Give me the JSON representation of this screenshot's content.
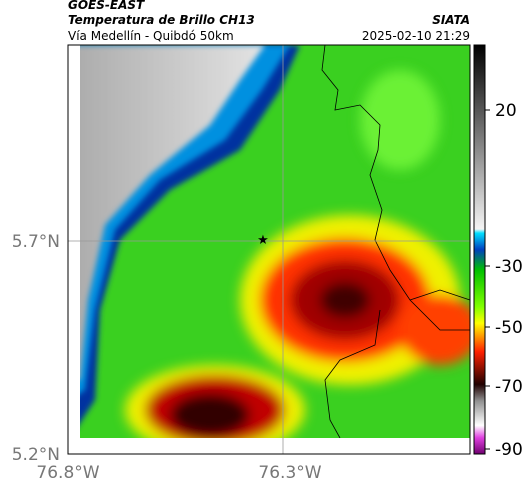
{
  "header": {
    "title": "GOES-EAST",
    "subtitle": "Temperatura de Brillo CH13",
    "route": "Vía Medellín - Quibdó 50km",
    "source": "SIATA",
    "datetime": "2025-02-10 21:29"
  },
  "map": {
    "lat_labels": [
      "5.7°N",
      "5.2°N"
    ],
    "lon_labels": [
      "76.8°W",
      "76.3°W"
    ]
  },
  "colorbar": {
    "tick_labels": [
      "20",
      "-30",
      "-50",
      "-70",
      "-90"
    ]
  }
}
